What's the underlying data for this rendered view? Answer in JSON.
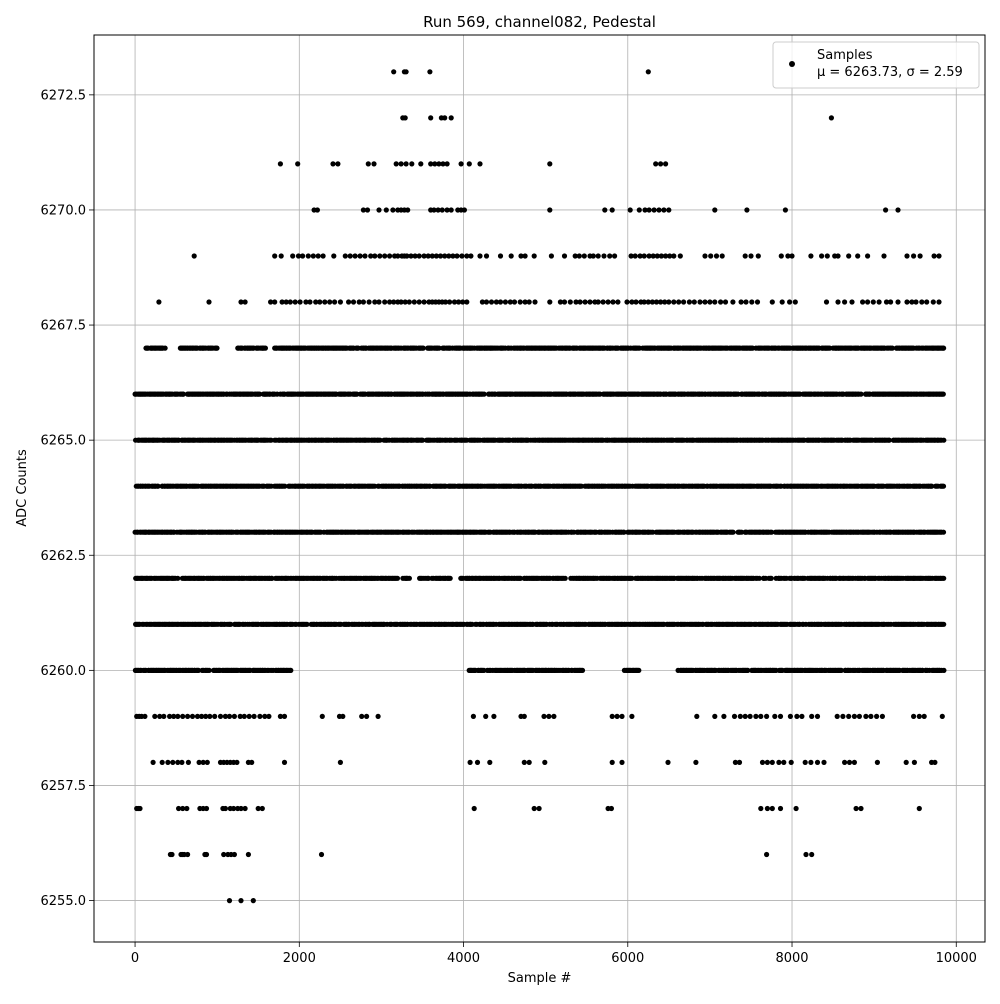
{
  "chart_data": {
    "type": "scatter",
    "title": "Run 569, channel082, Pedestal",
    "xlabel": "Sample #",
    "ylabel": "ADC Counts",
    "xlim": [
      -500,
      10350
    ],
    "ylim": [
      6254.1,
      6273.8
    ],
    "x_ticks": [
      0,
      2000,
      4000,
      6000,
      8000,
      10000
    ],
    "y_ticks": [
      6255.0,
      6257.5,
      6260.0,
      6262.5,
      6265.0,
      6267.5,
      6270.0,
      6272.5
    ],
    "x_tick_labels": [
      "0",
      "2000",
      "4000",
      "6000",
      "8000",
      "10000"
    ],
    "y_tick_labels": [
      "6255.0",
      "6257.5",
      "6260.0",
      "6262.5",
      "6265.0",
      "6267.5",
      "6270.0",
      "6272.5"
    ],
    "grid": true,
    "legend": {
      "position": "top-right",
      "entries": [
        {
          "name": "Samples",
          "stats": "μ = 6263.73, σ = 2.59",
          "marker": "circle",
          "color": "#000000"
        }
      ]
    },
    "n_samples": 9850,
    "series": [
      {
        "name": "Samples",
        "color": "#000000",
        "marker": "circle",
        "x_start": 0,
        "x_end": 9849,
        "levels": [
          {
            "y": 6255,
            "x": [
              1150,
              1290,
              1440
            ]
          },
          {
            "y": 6256,
            "x": [
              430,
              450,
              560,
              580,
              600,
              640,
              850,
              870,
              1080,
              1130,
              1170,
              1210,
              1380,
              2270,
              7690,
              8170,
              8240
            ]
          },
          {
            "y": 6257,
            "x": [
              20,
              40,
              60,
              530,
              580,
              630,
              790,
              830,
              870,
              1070,
              1100,
              1160,
              1200,
              1250,
              1290,
              1340,
              1500,
              1550,
              4130,
              4860,
              4920,
              5760,
              5800,
              7620,
              7700,
              7760,
              7860,
              8050,
              8780,
              8840,
              9550
            ]
          },
          {
            "y": 6258,
            "x": [
              220,
              330,
              400,
              460,
              520,
              570,
              650,
              780,
              830,
              880,
              1040,
              1080,
              1120,
              1160,
              1200,
              1240,
              1380,
              1420,
              1820,
              2500,
              4080,
              4170,
              4320,
              4740,
              4800,
              4990,
              5810,
              5930,
              6490,
              6830,
              7310,
              7360,
              7640,
              7700,
              7760,
              7840,
              7900,
              7990,
              8160,
              8230,
              8310,
              8390,
              8640,
              8700,
              8760,
              9040,
              9390,
              9490,
              9700,
              9740
            ]
          },
          {
            "y": 6259,
            "x": [
              20,
              50,
              80,
              120,
              240,
              300,
              350,
              420,
              470,
              520,
              580,
              640,
              700,
              760,
              810,
              860,
              910,
              970,
              1040,
              1100,
              1150,
              1210,
              1280,
              1330,
              1390,
              1450,
              1520,
              1580,
              1630,
              1770,
              1820,
              2280,
              2490,
              2530,
              2760,
              2820,
              2960,
              4120,
              4270,
              4370,
              4700,
              4740,
              4980,
              5040,
              5100,
              5810,
              5870,
              5930,
              6050,
              6840,
              7060,
              7170,
              7300,
              7370,
              7430,
              7490,
              7560,
              7620,
              7690,
              7790,
              7860,
              7980,
              8060,
              8120,
              8240,
              8310,
              8550,
              8620,
              8690,
              8760,
              8820,
              8900,
              8960,
              9030,
              9100,
              9480,
              9550,
              9610,
              9830
            ]
          }
        ],
        "dense_levels": [
          6260,
          6261,
          6262,
          6263,
          6264,
          6265,
          6266,
          6267
        ],
        "dense_level_gaps": {
          "6260": [
            [
              1900,
              4050
            ],
            [
              5450,
              5950
            ],
            [
              6150,
              6600
            ]
          ],
          "6267": [
            [
              0,
              80
            ],
            [
              400,
              550
            ],
            [
              1000,
              1250
            ],
            [
              1600,
              1700
            ]
          ],
          "6262": [
            [
              3200,
              3250
            ],
            [
              3350,
              3450
            ],
            [
              3850,
              3950
            ]
          ]
        },
        "upper_levels": [
          {
            "y": 6268,
            "x": [
              290,
              900,
              1290,
              1340,
              1650,
              1700,
              1790,
              1840,
              1890,
              1950,
              2010,
              2080,
              2130,
              2200,
              2250,
              2310,
              2370,
              2430,
              2500,
              2600,
              2660,
              2730,
              2780,
              2850,
              2920,
              2970,
              3040,
              3100,
              3150,
              3200,
              3240,
              3290,
              3340,
              3400,
              3460,
              3520,
              3580,
              3620,
              3660,
              3700,
              3740,
              3780,
              3830,
              3890,
              3940,
              3990,
              4040,
              4230,
              4280,
              4340,
              4400,
              4450,
              4510,
              4570,
              4620,
              4690,
              4750,
              4800,
              4870,
              5050,
              5180,
              5230,
              5300,
              5370,
              5420,
              5480,
              5540,
              5600,
              5640,
              5700,
              5760,
              5820,
              5880,
              5990,
              6050,
              6100,
              6160,
              6200,
              6250,
              6300,
              6350,
              6400,
              6450,
              6500,
              6560,
              6620,
              6680,
              6750,
              6810,
              6880,
              6940,
              7000,
              7060,
              7130,
              7190,
              7280,
              7380,
              7440,
              7510,
              7580,
              7760,
              7880,
              7970,
              8040,
              8420,
              8560,
              8640,
              8730,
              8860,
              8920,
              8990,
              9060,
              9150,
              9200,
              9290,
              9400,
              9460,
              9510,
              9580,
              9640,
              9720,
              9790
            ]
          },
          {
            "y": 6269,
            "x": [
              720,
              1700,
              1780,
              1920,
              1990,
              2040,
              2110,
              2170,
              2230,
              2290,
              2420,
              2560,
              2620,
              2680,
              2740,
              2800,
              2870,
              2920,
              2980,
              3040,
              3100,
              3160,
              3200,
              3250,
              3280,
              3310,
              3360,
              3410,
              3460,
              3520,
              3570,
              3620,
              3670,
              3720,
              3770,
              3820,
              3870,
              3920,
              3980,
              4040,
              4090,
              4200,
              4280,
              4450,
              4580,
              4700,
              4750,
              4860,
              5070,
              5230,
              5360,
              5410,
              5470,
              5540,
              5580,
              5640,
              5710,
              5780,
              5840,
              6040,
              6090,
              6150,
              6200,
              6260,
              6310,
              6360,
              6410,
              6460,
              6510,
              6560,
              6640,
              6940,
              7010,
              7080,
              7150,
              7430,
              7500,
              7590,
              7870,
              7950,
              8000,
              8230,
              8360,
              8430,
              8520,
              8560,
              8690,
              8800,
              8920,
              9120,
              9400,
              9480,
              9560,
              9730,
              9790
            ]
          },
          {
            "y": 6270,
            "x": [
              2180,
              2220,
              2780,
              2830,
              2970,
              3060,
              3140,
              3200,
              3240,
              3280,
              3320,
              3600,
              3640,
              3690,
              3740,
              3800,
              3850,
              3930,
              3970,
              4010,
              5050,
              5720,
              5810,
              6030,
              6140,
              6210,
              6260,
              6320,
              6380,
              6440,
              6500,
              7060,
              7450,
              7920,
              9140,
              9290
            ]
          },
          {
            "y": 6271,
            "x": [
              1770,
              1980,
              2410,
              2470,
              2840,
              2910,
              3180,
              3240,
              3300,
              3370,
              3480,
              3600,
              3650,
              3700,
              3750,
              3800,
              3970,
              4070,
              4200,
              5050,
              6340,
              6400,
              6460
            ]
          },
          {
            "y": 6272,
            "x": [
              3260,
              3290,
              3600,
              3730,
              3770,
              3850,
              8480
            ]
          },
          {
            "y": 6273,
            "x": [
              3150,
              3280,
              3300,
              3590,
              6250
            ]
          }
        ]
      }
    ]
  }
}
